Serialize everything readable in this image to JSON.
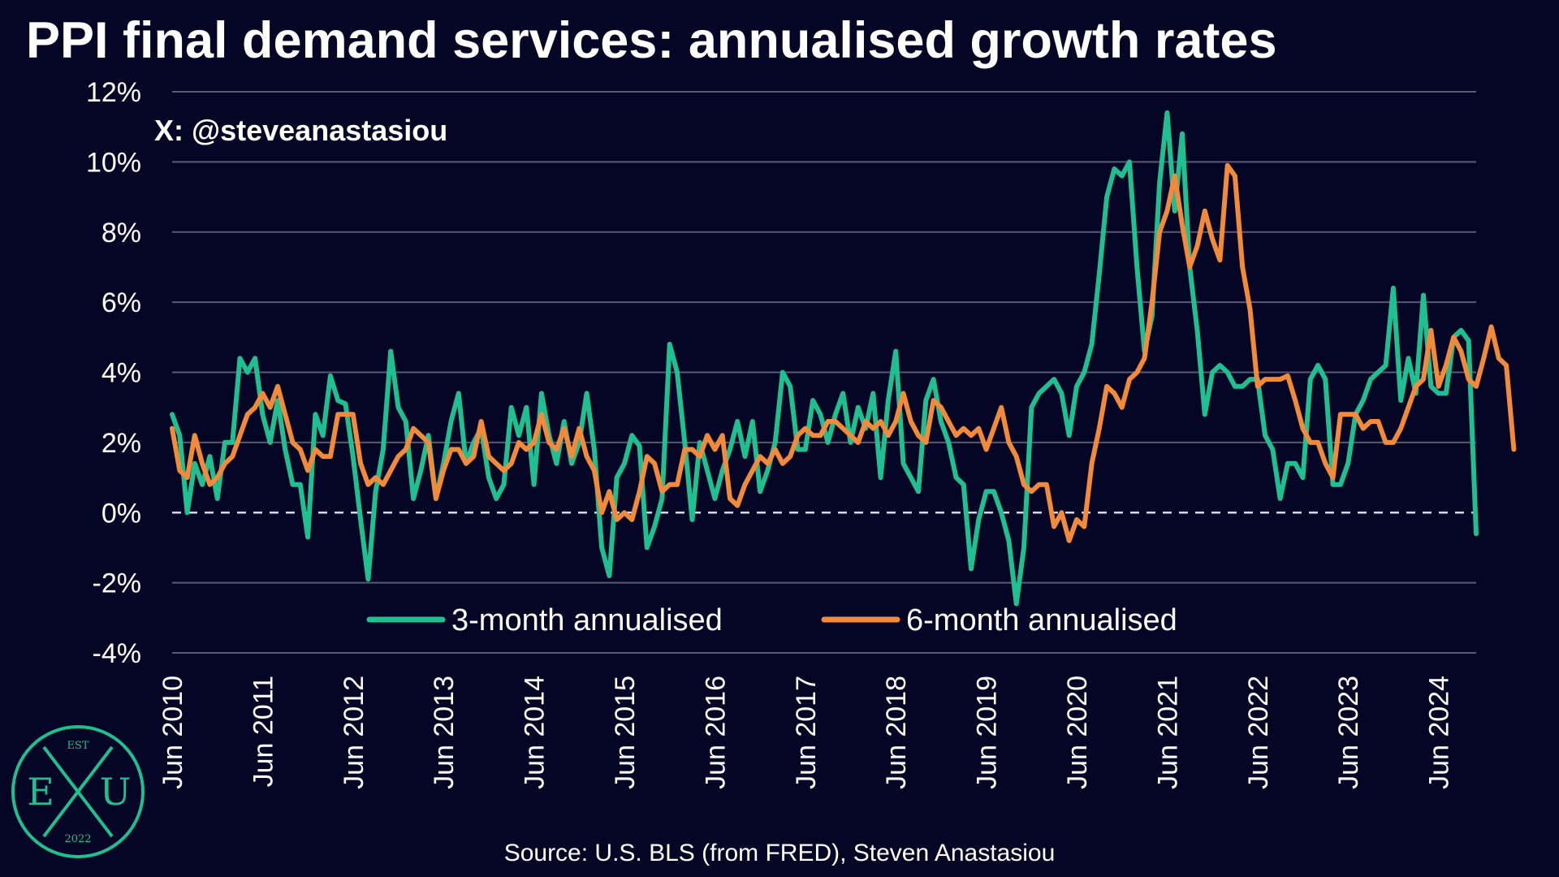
{
  "title": "PPI final demand services: annualised growth rates",
  "watermark": "X: @steveanastasiou",
  "source": "Source: U.S. BLS (from FRED), Steven Anastasiou",
  "logo": {
    "top_text": "EST",
    "left_letter": "E",
    "right_letter": "U",
    "bottom_text": "2022",
    "color": "#1fbf8f"
  },
  "colors": {
    "background": "#050526",
    "grid": "#5a5a72",
    "series3": "#1fbf8f",
    "series6": "#f28a3c",
    "text": "#ffffff"
  },
  "chart_data": {
    "type": "line",
    "xlabel": "",
    "ylabel": "",
    "ylim": [
      -4,
      12
    ],
    "yticks": [
      -4,
      -2,
      0,
      2,
      4,
      6,
      8,
      10,
      12
    ],
    "ytick_labels": [
      "-4%",
      "-2%",
      "0%",
      "2%",
      "4%",
      "6%",
      "8%",
      "10%",
      "12%"
    ],
    "xtick_labels": [
      "Jun 2010",
      "Jun 2011",
      "Jun 2012",
      "Jun 2013",
      "Jun 2014",
      "Jun 2015",
      "Jun 2016",
      "Jun 2017",
      "Jun 2018",
      "Jun 2019",
      "Jun 2020",
      "Jun 2021",
      "Jun 2022",
      "Jun 2023",
      "Jun 2024"
    ],
    "x_start": "2010-06",
    "x_end": "2025-02",
    "zero_line": "dashed",
    "grid": true,
    "legend_position": "bottom-center",
    "series": [
      {
        "name": "3-month annualised",
        "color": "#1fbf8f",
        "values": [
          2.8,
          2.2,
          0.0,
          1.4,
          0.8,
          1.6,
          0.4,
          2.0,
          2.0,
          4.4,
          4.0,
          4.4,
          2.8,
          2.0,
          3.2,
          1.8,
          0.8,
          0.8,
          -0.7,
          2.8,
          2.2,
          3.9,
          3.2,
          3.1,
          1.6,
          -0.2,
          -1.9,
          0.6,
          1.8,
          4.6,
          3.0,
          2.6,
          0.4,
          1.2,
          2.2,
          0.4,
          1.4,
          2.6,
          3.4,
          1.4,
          2.0,
          2.4,
          1.0,
          0.4,
          0.8,
          3.0,
          2.2,
          3.0,
          0.8,
          3.4,
          2.2,
          1.4,
          2.6,
          1.4,
          2.0,
          3.4,
          1.8,
          -1.0,
          -1.8,
          1.0,
          1.4,
          2.2,
          1.9,
          -1.0,
          -0.4,
          0.4,
          4.8,
          4.0,
          2.0,
          -0.2,
          2.0,
          1.2,
          0.4,
          1.2,
          1.8,
          2.6,
          1.6,
          2.6,
          0.6,
          1.2,
          2.0,
          4.0,
          3.6,
          1.8,
          1.8,
          3.2,
          2.8,
          2.0,
          2.8,
          3.4,
          2.0,
          3.0,
          2.4,
          3.4,
          1.0,
          3.2,
          4.6,
          1.4,
          1.0,
          0.6,
          3.2,
          3.8,
          2.6,
          2.0,
          1.0,
          0.8,
          -1.6,
          -0.2,
          0.6,
          0.6,
          0.0,
          -0.8,
          -2.6,
          -1.0,
          3.0,
          3.4,
          3.6,
          3.8,
          3.4,
          2.2,
          3.6,
          4.0,
          4.8,
          6.8,
          9.0,
          9.8,
          9.6,
          10.0,
          7.0,
          4.6,
          5.6,
          9.4,
          11.4,
          8.6,
          10.8,
          7.0,
          5.2,
          2.8,
          4.0,
          4.2,
          4.0,
          3.6,
          3.6,
          3.8,
          3.8,
          2.2,
          1.8,
          0.4,
          1.4,
          1.4,
          1.0,
          3.8,
          4.2,
          3.8,
          0.8,
          0.8,
          1.4,
          2.8,
          3.2,
          3.8,
          4.0,
          4.2,
          6.4,
          3.2,
          4.4,
          3.4,
          6.2,
          3.6,
          3.4,
          3.4,
          5.0,
          5.2,
          4.9,
          -0.6
        ]
      },
      {
        "name": "6-month annualised",
        "color": "#f28a3c",
        "values": [
          2.4,
          1.2,
          1.0,
          2.2,
          1.4,
          0.8,
          1.0,
          1.4,
          1.6,
          2.2,
          2.8,
          3.0,
          3.4,
          3.0,
          3.6,
          2.8,
          2.0,
          1.8,
          1.2,
          1.8,
          1.6,
          1.6,
          2.8,
          2.8,
          2.8,
          1.4,
          0.8,
          1.0,
          0.8,
          1.2,
          1.6,
          1.8,
          2.4,
          2.2,
          2.0,
          0.4,
          1.2,
          1.8,
          1.8,
          1.4,
          1.6,
          2.6,
          1.6,
          1.4,
          1.2,
          1.4,
          2.0,
          1.8,
          2.0,
          2.8,
          2.0,
          1.8,
          2.4,
          1.6,
          2.4,
          1.6,
          1.2,
          0.0,
          0.6,
          -0.2,
          0.0,
          -0.2,
          0.6,
          1.6,
          1.4,
          0.6,
          0.8,
          0.8,
          1.8,
          1.8,
          1.6,
          2.2,
          1.8,
          2.2,
          0.4,
          0.2,
          0.8,
          1.2,
          1.6,
          1.4,
          1.8,
          1.4,
          1.6,
          2.2,
          2.4,
          2.2,
          2.2,
          2.6,
          2.6,
          2.4,
          2.2,
          2.0,
          2.6,
          2.4,
          2.6,
          2.2,
          2.6,
          3.4,
          2.6,
          2.2,
          2.0,
          3.2,
          3.0,
          2.6,
          2.2,
          2.4,
          2.2,
          2.4,
          1.8,
          2.4,
          3.0,
          2.0,
          1.6,
          0.8,
          0.6,
          0.8,
          0.8,
          -0.4,
          0.0,
          -0.8,
          -0.2,
          -0.4,
          1.4,
          2.4,
          3.6,
          3.4,
          3.0,
          3.8,
          4.0,
          4.4,
          6.0,
          8.0,
          8.6,
          9.6,
          8.2,
          7.0,
          7.6,
          8.6,
          7.8,
          7.2,
          9.9,
          9.6,
          7.0,
          5.8,
          3.6,
          3.8,
          3.8,
          3.8,
          3.9,
          3.2,
          2.4,
          2.0,
          2.0,
          1.4,
          1.0,
          2.8,
          2.8,
          2.8,
          2.4,
          2.6,
          2.6,
          2.0,
          2.0,
          2.4,
          3.0,
          3.6,
          3.8,
          5.2,
          3.6,
          4.2,
          5.0,
          4.6,
          3.8,
          3.6,
          4.4,
          5.3,
          4.4,
          4.2,
          1.8
        ]
      }
    ]
  }
}
